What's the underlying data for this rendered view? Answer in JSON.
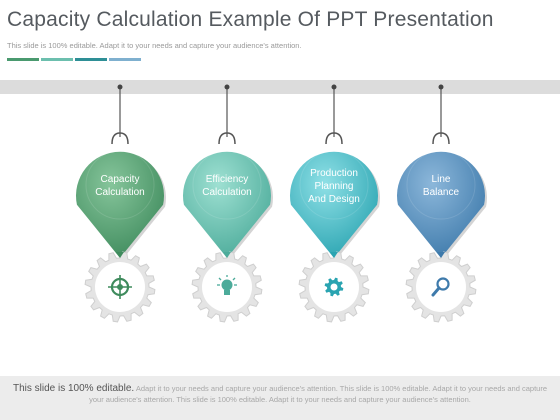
{
  "slide": {
    "title": "Capacity Calculation Example Of PPT Presentation",
    "subtitle": "This slide is 100% editable. Adapt it to your needs and capture your audience's attention.",
    "accent_colors": [
      "#4a9a6f",
      "#6cbfae",
      "#2e8f96",
      "#7fb0cf"
    ]
  },
  "pins": [
    {
      "line1": "Capacity",
      "line2": "Calculation",
      "line3": "",
      "color_light": "#86c59b",
      "color_dark": "#3f8b5d",
      "icon": "target-icon"
    },
    {
      "line1": "Efficiency",
      "line2": "Calculation",
      "line3": "",
      "color_light": "#9ee0d2",
      "color_dark": "#4cab9a",
      "icon": "lightbulb-icon"
    },
    {
      "line1": "Production",
      "line2": "Planning",
      "line3": "And Design",
      "color_light": "#8fe0e6",
      "color_dark": "#2aa4b1",
      "icon": "gear-icon"
    },
    {
      "line1": "Line",
      "line2": "Balance",
      "line3": "",
      "color_light": "#8cb7da",
      "color_dark": "#3e7aab",
      "icon": "search-icon"
    }
  ],
  "footer": {
    "strong": "This slide is 100% editable.",
    "text": "Adapt it to your needs and capture your audience's attention. This slide is 100% editable. Adapt it to your needs and capture your audience's attention. This slide is 100% editable. Adapt it to your needs and capture your audience's attention."
  }
}
